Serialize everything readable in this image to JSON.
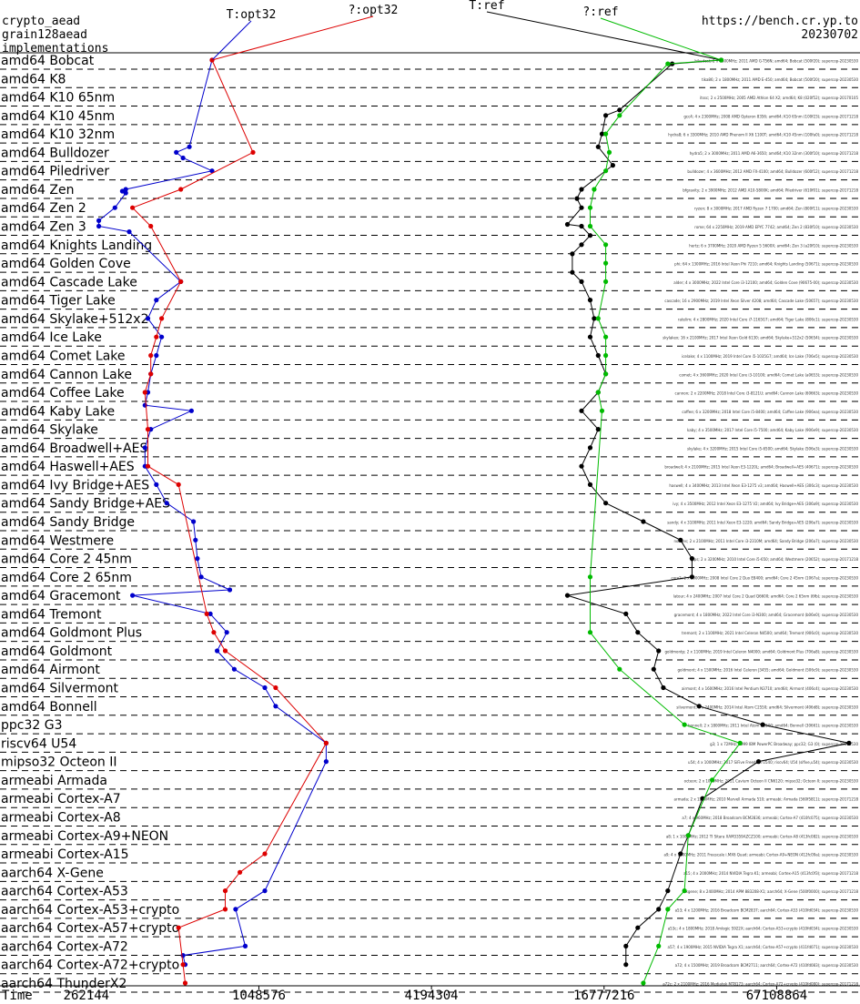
{
  "header": {
    "line1": "crypto_aead",
    "line2": "grain128aead",
    "line3": "implementations",
    "source": "https://bench.cr.yp.to",
    "date": "20230702"
  },
  "chart_data": {
    "type": "line",
    "xlabel": "Time",
    "x_scale": "log2",
    "xlim": [
      131072,
      131072000
    ],
    "x_ticks": [
      262144,
      1048576,
      4194304,
      16777216,
      67108864
    ],
    "x_tick_labels": [
      "262144",
      "1048576",
      "4194304",
      "16777216",
      "67108864"
    ],
    "categories": [
      "amd64 Bobcat",
      "amd64 K8",
      "amd64 K10 65nm",
      "amd64 K10 45nm",
      "amd64 K10 32nm",
      "amd64 Bulldozer",
      "amd64 Piledriver",
      "amd64 Zen",
      "amd64 Zen 2",
      "amd64 Zen 3",
      "amd64 Knights Landing",
      "amd64 Golden Cove",
      "amd64 Cascade Lake",
      "amd64 Tiger Lake",
      "amd64 Skylake+512x2",
      "amd64 Ice Lake",
      "amd64 Comet Lake",
      "amd64 Cannon Lake",
      "amd64 Coffee Lake",
      "amd64 Kaby Lake",
      "amd64 Skylake",
      "amd64 Broadwell+AES",
      "amd64 Haswell+AES",
      "amd64 Ivy Bridge+AES",
      "amd64 Sandy Bridge+AES",
      "amd64 Sandy Bridge",
      "amd64 Westmere",
      "amd64 Core 2 45nm",
      "amd64 Core 2 65nm",
      "amd64 Gracemont",
      "amd64 Tremont",
      "amd64 Goldmont Plus",
      "amd64 Goldmont",
      "amd64 Airmont",
      "amd64 Silvermont",
      "amd64 Bonnell",
      "ppc32 G3",
      "riscv64 U54",
      "mipso32 Octeon II",
      "armeabi Armada",
      "armeabi Cortex-A7",
      "armeabi Cortex-A8",
      "armeabi Cortex-A9+NEON",
      "armeabi Cortex-A15",
      "aarch64 X-Gene",
      "aarch64 Cortex-A53",
      "aarch64 Cortex-A53+crypto",
      "aarch64 Cortex-A57+crypto",
      "aarch64 Cortex-A72",
      "aarch64 Cortex-A72+crypto",
      "aarch64 ThunderX2"
    ],
    "series": [
      {
        "name": "T:opt32",
        "color": "#0000cc",
        "points": [
          [
            720000,
            0
          ],
          [
            600000,
            4.7
          ],
          [
            540000,
            5.0
          ],
          [
            570000,
            5.3
          ],
          [
            720000,
            6.0
          ],
          [
            360000,
            7.0
          ],
          [
            350000,
            7.1
          ],
          [
            360000,
            7.2
          ],
          [
            330000,
            8.0
          ],
          [
            290000,
            8.7
          ],
          [
            290000,
            9.0
          ],
          [
            370000,
            9.3
          ],
          [
            560000,
            12.0
          ],
          [
            460000,
            13.0
          ],
          [
            430000,
            14.0
          ],
          [
            480000,
            15.0
          ],
          [
            460000,
            16.0
          ],
          [
            440000,
            17.0
          ],
          [
            430000,
            18.0
          ],
          [
            420000,
            18.7
          ],
          [
            610000,
            19.0
          ],
          [
            440000,
            20.0
          ],
          [
            420000,
            21.0
          ],
          [
            420000,
            22.0
          ],
          [
            460000,
            23.0
          ],
          [
            500000,
            24.0
          ],
          [
            620000,
            25.0
          ],
          [
            630000,
            26.0
          ],
          [
            640000,
            27.0
          ],
          [
            660000,
            28.0
          ],
          [
            830000,
            28.7
          ],
          [
            380000,
            29.0
          ],
          [
            710000,
            30.0
          ],
          [
            810000,
            31.0
          ],
          [
            750000,
            32.0
          ],
          [
            860000,
            33.0
          ],
          [
            1100000,
            34.0
          ],
          [
            1200000,
            35.0
          ],
          [
            1800000,
            37.0
          ],
          [
            1800000,
            38.0
          ],
          [
            1100000,
            45.0
          ],
          [
            870000,
            46.0
          ],
          [
            940000,
            48.0
          ],
          [
            570000,
            48.5
          ],
          [
            580000,
            49.0
          ]
        ]
      },
      {
        "name": "?:opt32",
        "color": "#dd0000",
        "points": [
          [
            720000,
            0
          ],
          [
            1000000,
            5.0
          ],
          [
            560000,
            7.0
          ],
          [
            380000,
            8.0
          ],
          [
            440000,
            9.0
          ],
          [
            560000,
            12.0
          ],
          [
            480000,
            14.0
          ],
          [
            460000,
            15.0
          ],
          [
            440000,
            16.0
          ],
          [
            440000,
            17.0
          ],
          [
            420000,
            18.0
          ],
          [
            430000,
            20.0
          ],
          [
            430000,
            22.0
          ],
          [
            550000,
            23.0
          ],
          [
            690000,
            30.0
          ],
          [
            730000,
            31.0
          ],
          [
            800000,
            32.0
          ],
          [
            1200000,
            34.0
          ],
          [
            1800000,
            37.0
          ],
          [
            1100000,
            43.0
          ],
          [
            900000,
            44.0
          ],
          [
            800000,
            45.0
          ],
          [
            800000,
            46.0
          ],
          [
            550000,
            47.0
          ],
          [
            570000,
            49.0
          ],
          [
            580000,
            50.0
          ]
        ]
      },
      {
        "name": "T:ref",
        "color": "#000000",
        "points": [
          [
            43000000,
            0
          ],
          [
            29000000,
            0.2
          ],
          [
            19000000,
            2.7
          ],
          [
            17000000,
            3.0
          ],
          [
            16500000,
            4.0
          ],
          [
            16000000,
            4.7
          ],
          [
            18000000,
            5.7
          ],
          [
            14000000,
            7.0
          ],
          [
            13500000,
            7.5
          ],
          [
            14000000,
            8.0
          ],
          [
            12500000,
            8.9
          ],
          [
            14000000,
            9.0
          ],
          [
            15000000,
            9.5
          ],
          [
            14000000,
            10.0
          ],
          [
            13000000,
            10.5
          ],
          [
            13000000,
            11.5
          ],
          [
            14000000,
            12.0
          ],
          [
            15000000,
            13.0
          ],
          [
            15500000,
            14.0
          ],
          [
            15000000,
            15.0
          ],
          [
            16000000,
            16.0
          ],
          [
            17000000,
            17.0
          ],
          [
            16000000,
            18.0
          ],
          [
            14000000,
            19.0
          ],
          [
            16000000,
            20.0
          ],
          [
            15000000,
            21.0
          ],
          [
            14000000,
            22.0
          ],
          [
            15000000,
            23.0
          ],
          [
            17000000,
            24.0
          ],
          [
            23000000,
            25.0
          ],
          [
            31000000,
            26.0
          ],
          [
            34000000,
            27.0
          ],
          [
            34000000,
            28.0
          ],
          [
            12500000,
            29.0
          ],
          [
            20000000,
            30.0
          ],
          [
            22000000,
            31.0
          ],
          [
            26000000,
            32.0
          ],
          [
            25000000,
            33.0
          ],
          [
            27000000,
            34.0
          ],
          [
            36000000,
            35.0
          ],
          [
            60000000,
            36.0
          ],
          [
            120000000,
            37.0
          ],
          [
            58000000,
            38.0
          ],
          [
            37000000,
            40.0
          ],
          [
            33000000,
            42.0
          ],
          [
            31000000,
            43.0
          ],
          [
            28000000,
            45.0
          ],
          [
            26000000,
            46.0
          ],
          [
            22000000,
            47.0
          ],
          [
            20000000,
            48.0
          ],
          [
            20000000,
            49.0
          ]
        ]
      },
      {
        "name": "?:ref",
        "color": "#00bb00",
        "points": [
          [
            43000000,
            0
          ],
          [
            28000000,
            0.2
          ],
          [
            19000000,
            3.0
          ],
          [
            17000000,
            4.0
          ],
          [
            17500000,
            5.0
          ],
          [
            17000000,
            6.0
          ],
          [
            15500000,
            7.0
          ],
          [
            15000000,
            8.0
          ],
          [
            15000000,
            9.0
          ],
          [
            17000000,
            10.0
          ],
          [
            17000000,
            11.0
          ],
          [
            17000000,
            12.0
          ],
          [
            16000000,
            14.0
          ],
          [
            17000000,
            15.0
          ],
          [
            17000000,
            16.0
          ],
          [
            17000000,
            17.0
          ],
          [
            16000000,
            18.0
          ],
          [
            16500000,
            19.0
          ],
          [
            15000000,
            28.0
          ],
          [
            15000000,
            31.0
          ],
          [
            19000000,
            33.0
          ],
          [
            32000000,
            36.0
          ],
          [
            50000000,
            37.0
          ],
          [
            40000000,
            39.0
          ],
          [
            33000000,
            42.0
          ],
          [
            32000000,
            45.0
          ],
          [
            28000000,
            46.0
          ],
          [
            26000000,
            48.0
          ],
          [
            23000000,
            50.0
          ]
        ]
      }
    ],
    "legend_placement": "top, labels above the lines"
  },
  "right_notes": [
    "bikedcat; 2 x 1600MHz; 2011 AMD G-T56N; amd64; Bobcat (500f20); supercop-20230530",
    "tika86; 2 x 1800MHz; 2011 AMD E-450; amd64; Bobcat (500f20); supercop-20230530",
    "itssc; 2 x 2500MHz; 2005 AMD Athlon 64 X2; amd64; K8 (020f52); supercop-20170105",
    "gcc4; 4 x 2300MHz; 2008 AMD Opteron 8356; amd64; K10 65nm (100f23); supercop-20171218",
    "hydra8; 6 x 3300MHz; 2010 AMD Phenom II X6 1100T; amd64; K10 45nm (100fa0); supercop-20171218",
    "hydra5; 2 x 3000MHz; 2011 AMD A6-3650; amd64; K10 32nm (300f10); supercop-20171218",
    "bulldozer; 4 x 3600MHz; 2012 AMD FX-4100; amd64; Bulldozer (600f12); supercop-20171218",
    "bfgravity; 2 x 3900MHz; 2012 AMD A10-5800K; amd64; Piledriver (610f01); supercop-20171218",
    "ryzen; 8 x 3000MHz; 2017 AMD Ryzen 7 1700; amd64; Zen (800f11); supercop-20230530",
    "rome; 64 x 2250MHz; 2019 AMD EPYC 7742; amd64; Zen 2 (830f10); supercop-20230530",
    "hertz; 6 x 3700MHz; 2020 AMD Ryzen 5 5600X; amd64; Zen 3 (a20f10); supercop-20230530",
    "phi; 64 x 1300MHz; 2016 Intel Xeon Phi 7210; amd64; Knights Landing (50671); supercop-20230530",
    "alder; 4 x 3000MHz; 2022 Intel Core i3-12100; amd64; Golden Cove (90675-00); supercop-20230530",
    "cascade; 16 x 2900MHz; 2019 Intel Xeon Silver 4208; amd64; Cascade Lake (50657); supercop-20230530",
    "ratelim; 4 x 2800MHz; 2020 Intel Core i7-1165G7; amd64; Tiger Lake (806c1); supercop-20230530",
    "skylakex; 16 x 2100MHz; 2017 Intel Xeon Gold 6130; amd64; Skylake+512x2 (50654); supercop-20230530",
    "icelake; 4 x 1100MHz; 2019 Intel Core i5-1035G7; amd64; Ice Lake (706e5); supercop-20230530",
    "comet; 4 x 3600MHz; 2020 Intel Core i3-10100; amd64; Comet Lake (a0653); supercop-20230530",
    "cannon; 2 x 2200MHz; 2018 Intel Core i3-8121U; amd64; Cannon Lake (60663); supercop-20230530",
    "coffee; 6 x 3200MHz; 2018 Intel Core i5-8400; amd64; Coffee Lake (906ea); supercop-20230530",
    "kaby; 4 x 3500MHz; 2017 Intel Core i5-7500; amd64; Kaby Lake (906e9); supercop-20230530",
    "skylake; 4 x 3200MHz; 2015 Intel Core i5-6500; amd64; Skylake (506e3); supercop-20230530",
    "broadwell; 4 x 2100MHz; 2015 Intel Xeon E3-1220L; amd64; Broadwell+AES (40671); supercop-20230530",
    "haswell; 4 x 3400MHz; 2013 Intel Xeon E3-1275 v3; amd64; Haswell+AES (306c3); supercop-20230530",
    "ivy; 4 x 3500MHz; 2012 Intel Xeon E3-1275 V2; amd64; Ivy Bridge+AES (306a9); supercop-20230530",
    "sandy; 4 x 3100MHz; 2011 Intel Xeon E3-1220; amd64; Sandy Bridge+AES (206a7); supercop-20230530",
    "nonaes; 2 x 2100MHz; 2011 Intel Core i3-2310M; amd64; Sandy Bridge (206a7); supercop-20230530",
    "gips; 2 x 3200MHz; 2010 Intel Core i5-650; amd64; Westmere (20652); supercop-20171218",
    "core2; 2 x 3000MHz; 2008 Intel Core 2 Duo E8400; amd64; Core 2 45nm (1067a); supercop-20230530",
    "latour; 4 x 2400MHz; 2007 Intel Core 2 Quad Q6600; amd64; Core 2 65nm (6fb); supercop-20230530",
    "gracemont; 4 x 1800MHz; 2022 Intel Core i3-N300; amd64; Gracemont (b06e0); supercop-20230530",
    "tremont; 2 x 1100MHz; 2021 Intel Celeron N4500; amd64; Tremont (906c0); supercop-20230530",
    "goldmontp; 2 x 1100MHz; 2019 Intel Celeron N4000; amd64; Goldmont Plus (706a8); supercop-20230530",
    "goldmont; 4 x 1500MHz; 2016 Intel Celeron J3455; amd64; Goldmont (506c9); supercop-20230530",
    "airmont; 4 x 1600MHz; 2016 Intel Pentium N3710; amd64; Airmont (406c4); supercop-20230530",
    "silvermont; 4 x 2400MHz; 2014 Intel Atom C2550; amd64; Silvermont (406d8); supercop-20230530",
    "bonnell; 2 x 1800MHz; 2011 Intel Atom D2500; amd64; Bonnell (30661); supercop-20230530",
    "g3; 1 x 72MHz; 1999 IBM PowerPC Broadway; ppc32; G3 (0); supercop-20230530",
    "u54; 4 x 1000MHz; 2017 SiFive Freedom U540; riscv64; U54 (sifive,u54); supercop-20230530",
    "octeon; 2 x 1000MHz; 2011 Cavium Octeon II CN6120; mipso32; Octeon II; supercop-20230530",
    "armada; 2 x 1200MHz; 2010 Marvell Armada 510; armeabi; Armada (560f5811); supercop-20171218",
    "a7; 4 x 960MHz; 2018 Broadcom BCM2836; armeabi; Cortex-A7 (410fc075); supercop-20230530",
    "a8; 1 x 1000MHz; 2012 TI Sitara XAM3359AZCZ100; armeabi; Cortex-A8 (413fc082); supercop-20230530",
    "a9; 4 x 1000MHz; 2011 Freescale i.MX6 Quad; armeabi; Cortex-A9+NEON (412fc09a); supercop-20230530",
    "a15; 4 x 2000MHz; 2014 NVIDIA Tegra K1; armeabi; Cortex-A15 (413fc0f3); supercop-20171218",
    "xgene; 8 x 2400MHz; 2014 APM 883208-X1; aarch64; X-Gene (500f0000); supercop-20171218",
    "a53; 4 x 1200MHz; 2016 Broadcom BCM2837; aarch64; Cortex-A53 (410fd034); supercop-20230530",
    "a53c; 4 x 1800MHz; 2018 Amlogic S922X; aarch64; Cortex-A53+crypto (410fd034); supercop-20230530",
    "a57; 4 x 1900MHz; 2015 NVIDIA Tegra X1; aarch64; Cortex-A57+crypto (411fd071); supercop-20230530",
    "a72; 4 x 1500MHz; 2019 Broadcom BCM2711; aarch64; Cortex-A72 (410fd083); supercop-20230530",
    "a72c; 2 x 2100MHz; 2016 Mediatek MT8173; aarch64; Cortex-A72+crypto (410fd080); supercop-20171218",
    "tx2; 64 x 2500MHz; 2018 Cavium ThunderX2 CN9980; aarch64; ThunderX2 (431f0af1); supercop-20230530"
  ]
}
